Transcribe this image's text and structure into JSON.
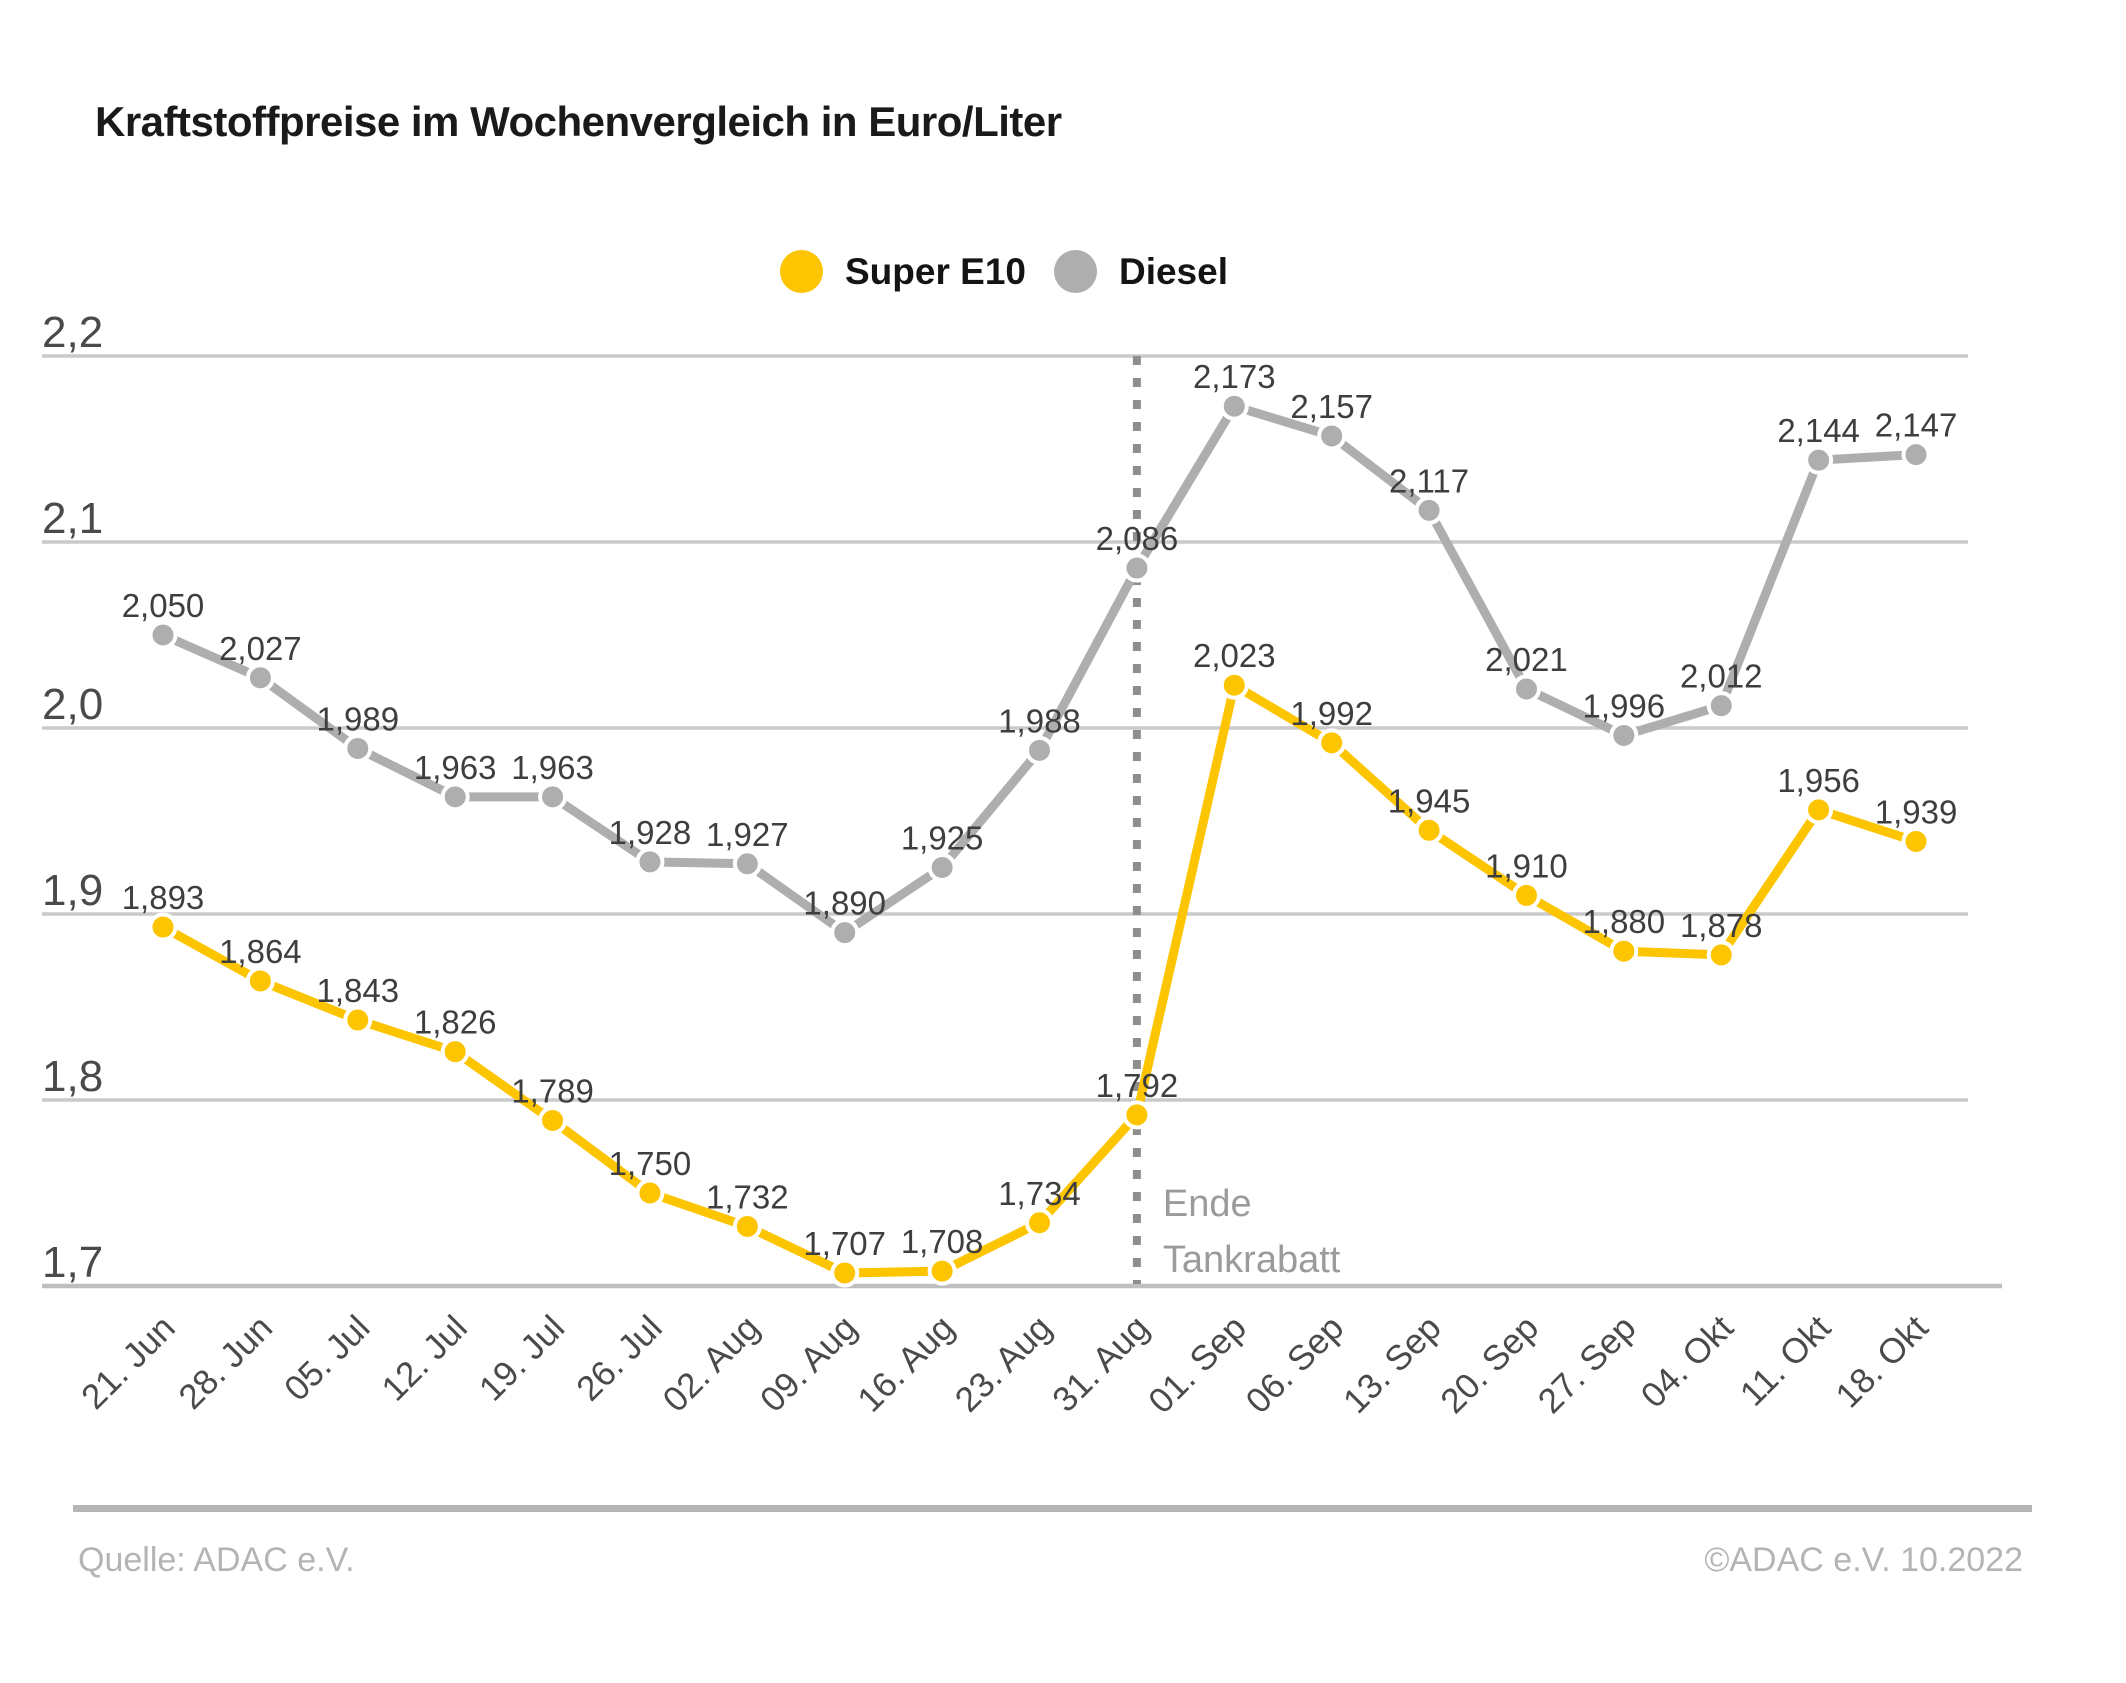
{
  "title": "Kraftstoffpreise im Wochenvergleich in Euro/Liter",
  "footer": {
    "source": "Quelle: ADAC e.V.",
    "copyright": "©ADAC e.V.  10.2022"
  },
  "colors": {
    "super_e10": "#FDC400",
    "diesel": "#AEAEAE",
    "gridline": "#CACACA",
    "axis_line": "#BFBFBF",
    "dotted_line": "#8E8E8E",
    "value_label": "#3E3E3E",
    "annotation": "#9B9B9B"
  },
  "chart_data": {
    "type": "line",
    "title": "Kraftstoffpreise im Wochenvergleich in Euro/Liter",
    "categories": [
      "21. Jun",
      "28. Jun",
      "05. Jul",
      "12. Jul",
      "19. Jul",
      "26. Jul",
      "02. Aug",
      "09. Aug",
      "16. Aug",
      "23. Aug",
      "31. Aug",
      "01. Sep",
      "06. Sep",
      "13. Sep",
      "20. Sep",
      "27. Sep",
      "04. Okt",
      "11. Okt",
      "18. Okt"
    ],
    "series": [
      {
        "name": "Super E10",
        "color": "#FDC400",
        "values": [
          1.893,
          1.864,
          1.843,
          1.826,
          1.789,
          1.75,
          1.732,
          1.707,
          1.708,
          1.734,
          1.792,
          2.023,
          1.992,
          1.945,
          1.91,
          1.88,
          1.878,
          1.956,
          1.939
        ]
      },
      {
        "name": "Diesel",
        "color": "#AEAEAE",
        "values": [
          2.05,
          2.027,
          1.989,
          1.963,
          1.963,
          1.928,
          1.927,
          1.89,
          1.925,
          1.988,
          2.086,
          2.173,
          2.157,
          2.117,
          2.021,
          1.996,
          2.012,
          2.144,
          2.147
        ]
      }
    ],
    "xlabel": "",
    "ylabel": "",
    "ylim": [
      1.7,
      2.2
    ],
    "yticks": [
      1.7,
      1.8,
      1.9,
      2.0,
      2.1,
      2.2
    ],
    "ytick_labels": [
      "1,7",
      "1,8",
      "1,9",
      "2,0",
      "2,1",
      "2,2"
    ],
    "decimal_separator": ",",
    "grid": "horizontal",
    "legend_position": "top-center",
    "x_label_rotation": -45,
    "annotation": {
      "x_category": "31. Aug",
      "line_style": "dotted-vertical",
      "text_lines": [
        "Ende",
        "Tankrabatt"
      ]
    }
  }
}
